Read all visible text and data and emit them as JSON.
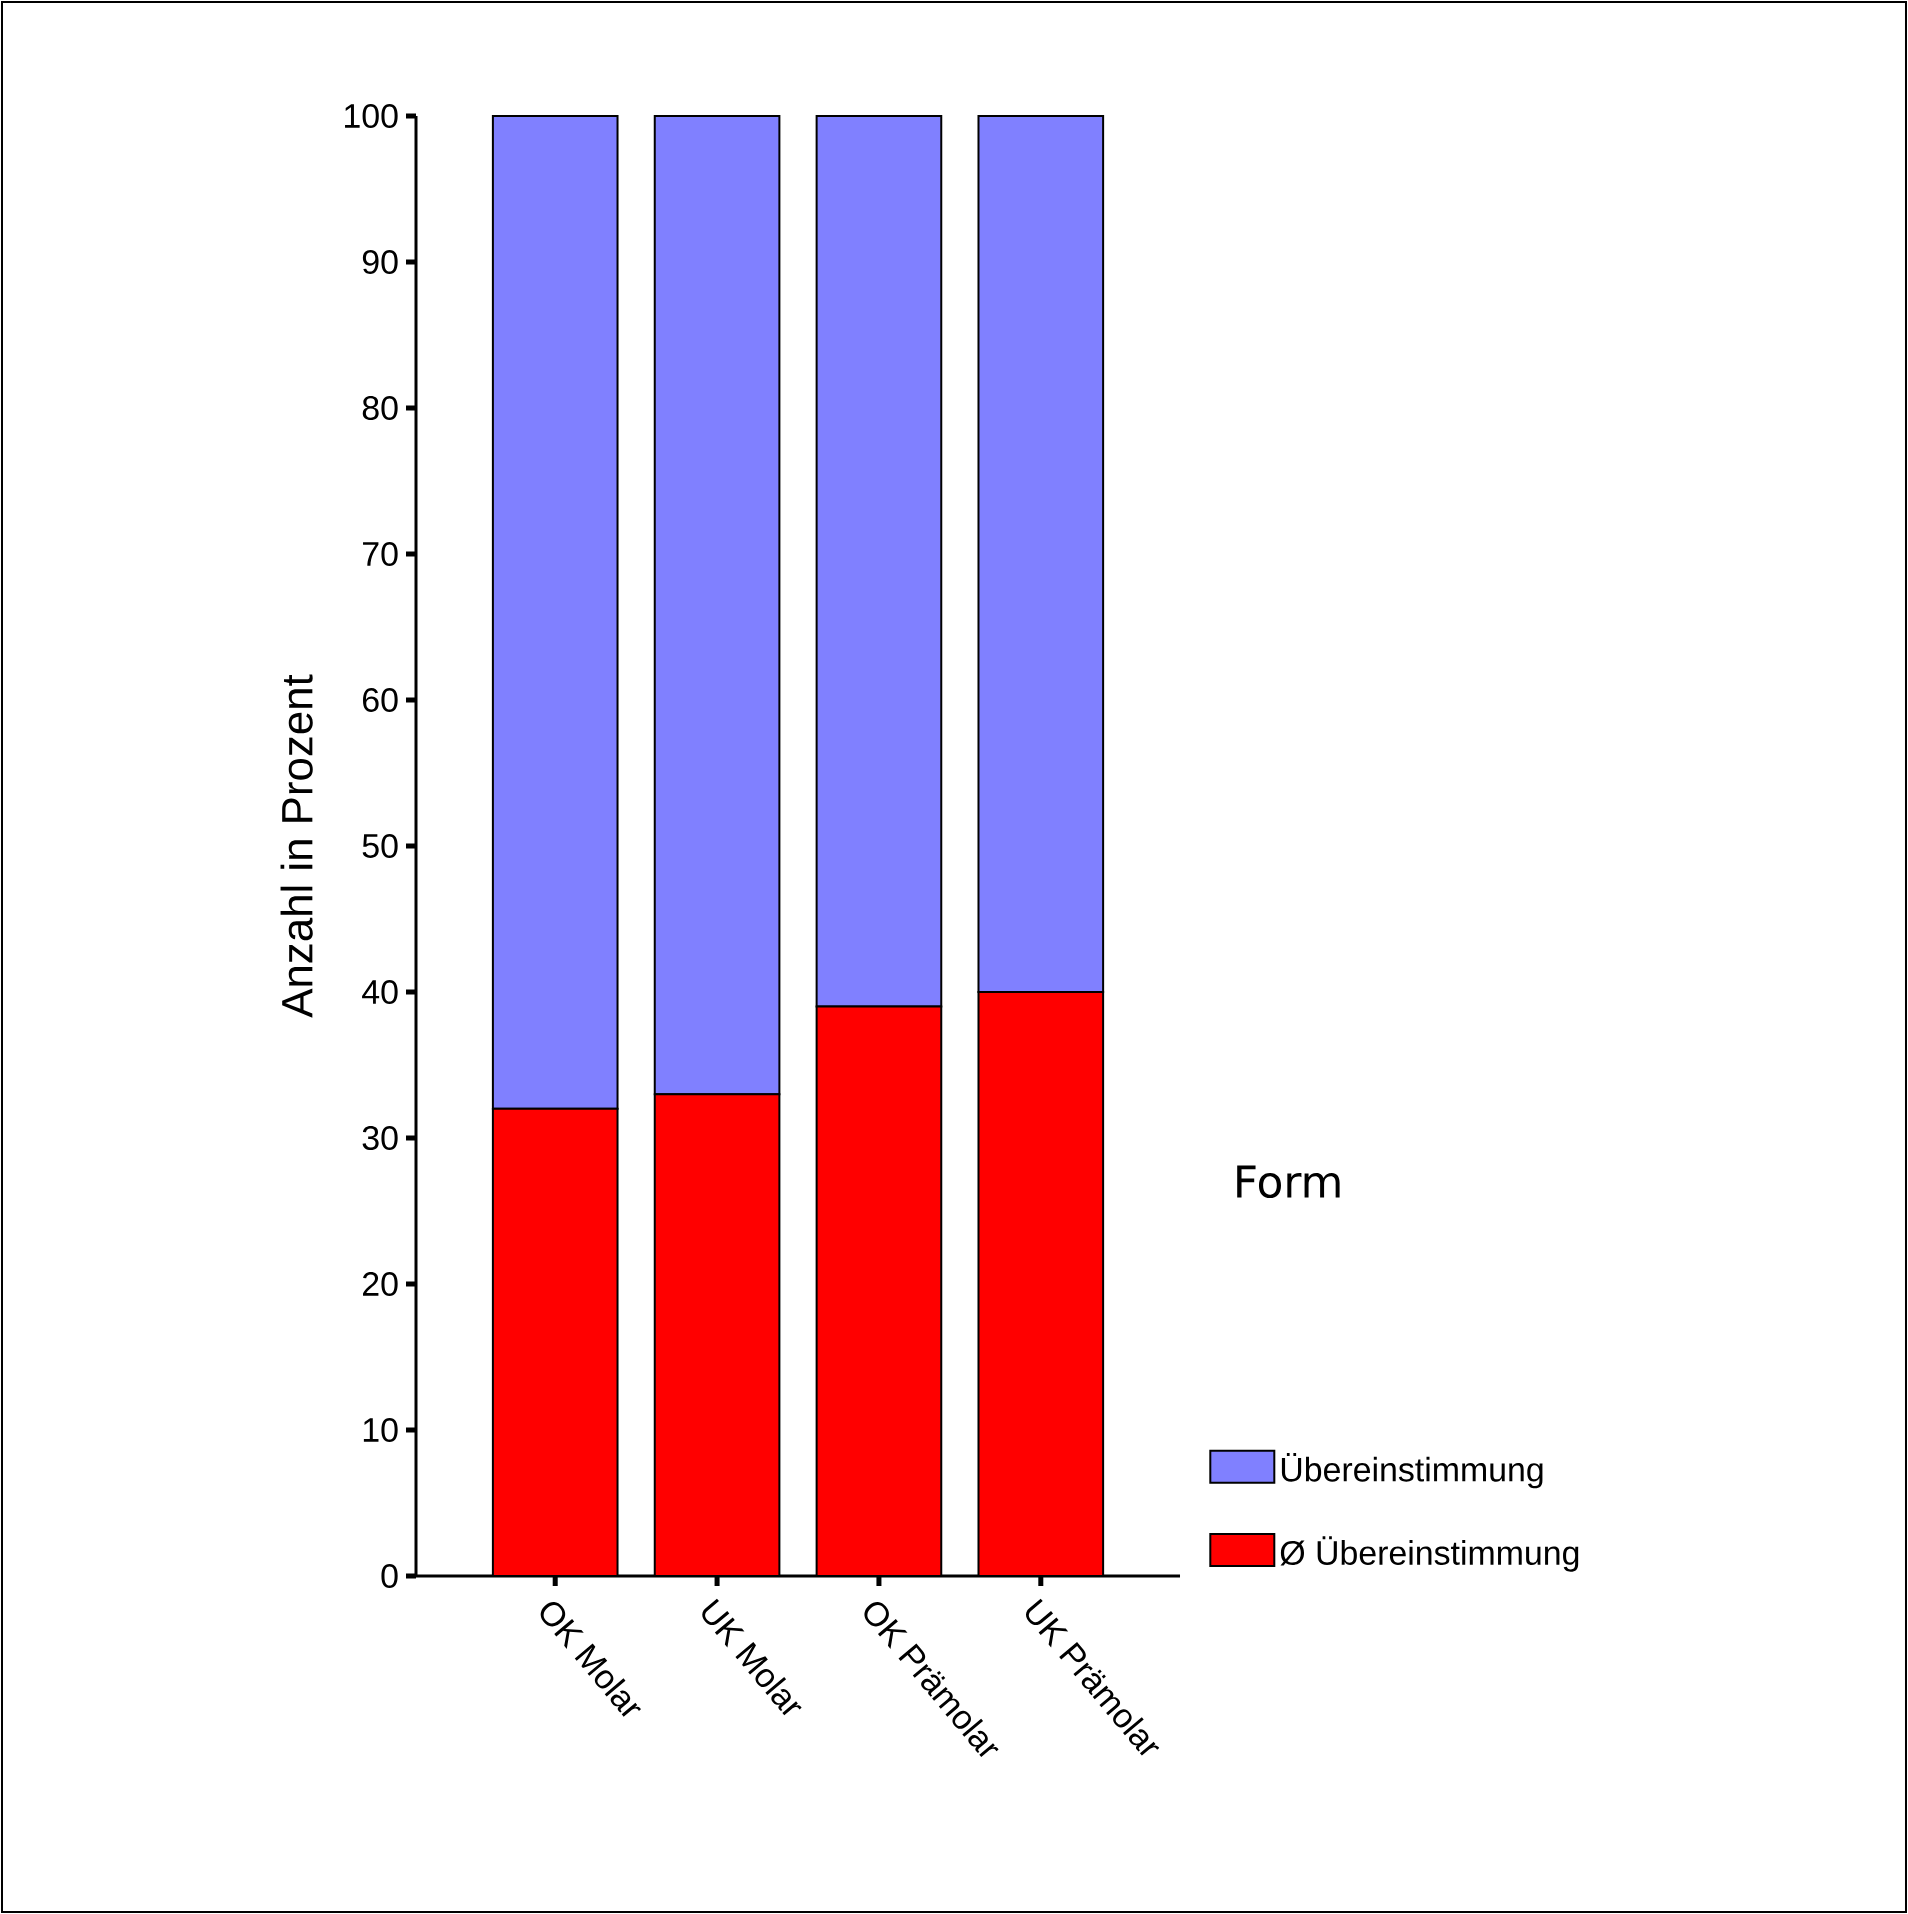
{
  "chart_data": {
    "type": "bar",
    "stacked": true,
    "ylabel": "Anzahl in Prozent",
    "legend_title": "Form",
    "legend": "right",
    "categories": [
      "OK Molar",
      "UK Molar",
      "OK Prämolar",
      "UK Prämolar"
    ],
    "series": [
      {
        "name": "Ø Übereinstimmung",
        "color": "#ff0000",
        "values": [
          32,
          33,
          39,
          40
        ]
      },
      {
        "name": "Übereinstimmung",
        "color": "#8080ff",
        "values": [
          68,
          67,
          61,
          60
        ]
      }
    ],
    "ylim": [
      0,
      100
    ],
    "yticks": [
      0,
      10,
      20,
      30,
      40,
      50,
      60,
      70,
      80,
      90,
      100
    ],
    "grid": false
  }
}
